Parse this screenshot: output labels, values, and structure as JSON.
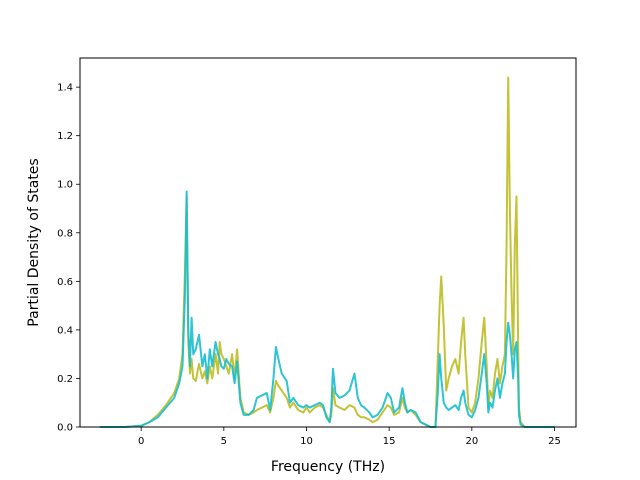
{
  "chart_data": {
    "type": "line",
    "title": "",
    "xlabel": "Frequency (THz)",
    "ylabel": "Partial Density of States",
    "xlim": [
      -3.7,
      26.3
    ],
    "ylim": [
      0,
      1.52
    ],
    "xticks": [
      0,
      5,
      10,
      15,
      20,
      25
    ],
    "yticks": [
      0.0,
      0.2,
      0.4,
      0.6,
      0.8,
      1.0,
      1.2,
      1.4
    ],
    "xtick_labels": [
      "0",
      "5",
      "10",
      "15",
      "20",
      "25"
    ],
    "ytick_labels": [
      "0.0",
      "0.2",
      "0.4",
      "0.6",
      "0.8",
      "1.0",
      "1.2",
      "1.4"
    ],
    "grid": false,
    "legend": "none",
    "series": [
      {
        "color": "#bcbd22",
        "x": [
          -2.5,
          -1.0,
          0.0,
          0.5,
          1.0,
          1.5,
          2.0,
          2.3,
          2.5,
          2.65,
          2.75,
          2.85,
          2.95,
          3.05,
          3.15,
          3.3,
          3.5,
          3.7,
          3.85,
          4.0,
          4.15,
          4.3,
          4.5,
          4.65,
          4.75,
          4.85,
          5.0,
          5.15,
          5.3,
          5.5,
          5.65,
          5.8,
          6.0,
          6.2,
          6.5,
          6.8,
          7.0,
          7.3,
          7.6,
          7.8,
          8.0,
          8.15,
          8.3,
          8.5,
          8.8,
          9.0,
          9.2,
          9.5,
          9.8,
          10.0,
          10.2,
          10.5,
          10.8,
          11.0,
          11.2,
          11.4,
          11.5,
          11.6,
          11.75,
          12.0,
          12.3,
          12.6,
          12.9,
          13.1,
          13.3,
          13.5,
          13.8,
          14.0,
          14.3,
          14.6,
          14.9,
          15.1,
          15.3,
          15.6,
          15.8,
          15.95,
          16.1,
          16.3,
          16.6,
          16.9,
          17.2,
          17.5,
          17.8,
          17.95,
          18.05,
          18.15,
          18.3,
          18.45,
          18.6,
          18.8,
          19.0,
          19.2,
          19.35,
          19.5,
          19.6,
          19.8,
          20.0,
          20.2,
          20.4,
          20.6,
          20.75,
          20.9,
          21.0,
          21.1,
          21.25,
          21.4,
          21.55,
          21.7,
          21.85,
          22.0,
          22.1,
          22.2,
          22.3,
          22.4,
          22.5,
          22.6,
          22.7,
          22.8,
          22.85,
          22.95,
          23.2,
          25.0
        ],
        "y": [
          0.0,
          0.0,
          0.005,
          0.02,
          0.05,
          0.09,
          0.14,
          0.2,
          0.3,
          0.65,
          0.95,
          0.35,
          0.22,
          0.28,
          0.2,
          0.19,
          0.26,
          0.2,
          0.23,
          0.18,
          0.25,
          0.2,
          0.3,
          0.22,
          0.35,
          0.3,
          0.28,
          0.25,
          0.22,
          0.3,
          0.2,
          0.32,
          0.12,
          0.06,
          0.05,
          0.06,
          0.07,
          0.08,
          0.09,
          0.06,
          0.12,
          0.19,
          0.17,
          0.15,
          0.12,
          0.08,
          0.1,
          0.07,
          0.06,
          0.08,
          0.06,
          0.08,
          0.09,
          0.08,
          0.05,
          0.02,
          0.05,
          0.16,
          0.09,
          0.08,
          0.07,
          0.09,
          0.08,
          0.05,
          0.04,
          0.04,
          0.03,
          0.02,
          0.03,
          0.06,
          0.09,
          0.08,
          0.05,
          0.06,
          0.12,
          0.08,
          0.06,
          0.07,
          0.05,
          0.02,
          0.01,
          0.0,
          0.0,
          0.3,
          0.5,
          0.62,
          0.42,
          0.15,
          0.2,
          0.25,
          0.28,
          0.22,
          0.35,
          0.45,
          0.3,
          0.08,
          0.06,
          0.1,
          0.2,
          0.35,
          0.45,
          0.25,
          0.08,
          0.15,
          0.12,
          0.22,
          0.28,
          0.18,
          0.25,
          0.3,
          0.75,
          1.44,
          0.9,
          0.55,
          0.3,
          0.75,
          0.95,
          0.35,
          0.08,
          0.02,
          0.0,
          0.0
        ]
      },
      {
        "color": "#17becf",
        "x": [
          -2.5,
          -1.0,
          0.0,
          0.5,
          1.0,
          1.5,
          2.0,
          2.3,
          2.5,
          2.65,
          2.75,
          2.85,
          2.95,
          3.05,
          3.15,
          3.3,
          3.5,
          3.7,
          3.85,
          4.0,
          4.15,
          4.3,
          4.5,
          4.65,
          4.75,
          4.85,
          5.0,
          5.15,
          5.3,
          5.5,
          5.65,
          5.8,
          6.0,
          6.2,
          6.5,
          6.8,
          7.0,
          7.3,
          7.6,
          7.8,
          8.0,
          8.15,
          8.3,
          8.5,
          8.8,
          9.0,
          9.2,
          9.5,
          9.8,
          10.0,
          10.2,
          10.5,
          10.8,
          11.0,
          11.2,
          11.4,
          11.5,
          11.6,
          11.75,
          12.0,
          12.3,
          12.6,
          12.9,
          13.1,
          13.3,
          13.5,
          13.8,
          14.0,
          14.3,
          14.6,
          14.9,
          15.1,
          15.3,
          15.6,
          15.8,
          15.95,
          16.1,
          16.3,
          16.6,
          16.9,
          17.2,
          17.5,
          17.8,
          17.95,
          18.05,
          18.15,
          18.3,
          18.45,
          18.6,
          18.8,
          19.0,
          19.2,
          19.35,
          19.5,
          19.6,
          19.8,
          20.0,
          20.2,
          20.4,
          20.6,
          20.75,
          20.9,
          21.0,
          21.1,
          21.25,
          21.4,
          21.55,
          21.7,
          21.85,
          22.0,
          22.1,
          22.2,
          22.3,
          22.4,
          22.5,
          22.6,
          22.7,
          22.8,
          22.85,
          22.95,
          23.2,
          25.0
        ],
        "y": [
          0.0,
          0.0,
          0.005,
          0.02,
          0.04,
          0.08,
          0.12,
          0.18,
          0.25,
          0.55,
          0.97,
          0.4,
          0.25,
          0.45,
          0.3,
          0.32,
          0.38,
          0.25,
          0.3,
          0.2,
          0.32,
          0.25,
          0.35,
          0.3,
          0.28,
          0.25,
          0.24,
          0.28,
          0.26,
          0.25,
          0.18,
          0.27,
          0.1,
          0.05,
          0.05,
          0.07,
          0.12,
          0.13,
          0.14,
          0.07,
          0.2,
          0.33,
          0.28,
          0.22,
          0.19,
          0.1,
          0.12,
          0.09,
          0.08,
          0.09,
          0.08,
          0.09,
          0.1,
          0.09,
          0.04,
          0.02,
          0.08,
          0.24,
          0.14,
          0.12,
          0.13,
          0.15,
          0.22,
          0.12,
          0.09,
          0.08,
          0.06,
          0.04,
          0.05,
          0.08,
          0.14,
          0.12,
          0.06,
          0.08,
          0.16,
          0.1,
          0.06,
          0.07,
          0.06,
          0.02,
          0.01,
          0.0,
          0.0,
          0.15,
          0.3,
          0.2,
          0.1,
          0.08,
          0.07,
          0.08,
          0.09,
          0.07,
          0.12,
          0.15,
          0.1,
          0.05,
          0.04,
          0.07,
          0.12,
          0.22,
          0.3,
          0.18,
          0.06,
          0.1,
          0.08,
          0.15,
          0.2,
          0.12,
          0.18,
          0.22,
          0.35,
          0.43,
          0.38,
          0.3,
          0.2,
          0.32,
          0.35,
          0.2,
          0.05,
          0.01,
          0.0,
          0.0
        ]
      }
    ]
  }
}
